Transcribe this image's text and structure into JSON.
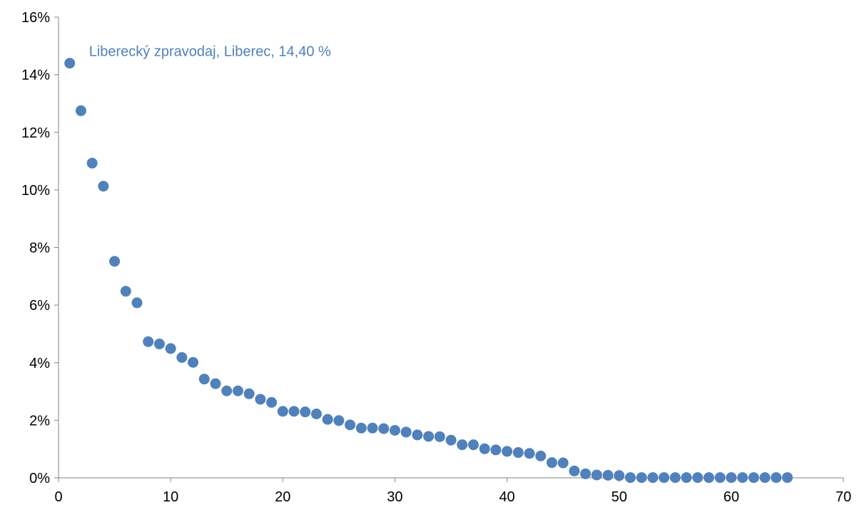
{
  "chart_data": {
    "type": "scatter",
    "title": "",
    "xlabel": "",
    "ylabel": "",
    "xlim": [
      0,
      70
    ],
    "ylim": [
      0,
      0.16
    ],
    "x_ticks": [
      "0",
      "10",
      "20",
      "30",
      "40",
      "50",
      "60",
      "70"
    ],
    "y_ticks": [
      "0%",
      "2%",
      "4%",
      "6%",
      "8%",
      "10%",
      "12%",
      "14%",
      "16%"
    ],
    "grid": false,
    "legend": "none",
    "marker_color": "#4F81BD",
    "annotation": {
      "text": "Liberecký zpravodaj, Liberec, 14,40 %",
      "color": "#4F81BD",
      "x": 1,
      "y": 0.144
    },
    "series": [
      {
        "x": [
          1,
          2,
          3,
          4,
          5,
          6,
          7,
          8,
          9,
          10,
          11,
          12,
          13,
          14,
          15,
          16,
          17,
          18,
          19,
          20,
          21,
          22,
          23,
          24,
          25,
          26,
          27,
          28,
          29,
          30,
          31,
          32,
          33,
          34,
          35,
          36,
          37,
          38,
          39,
          40,
          41,
          42,
          43,
          44,
          45,
          46,
          47,
          48,
          49,
          50,
          51,
          52,
          53,
          54,
          55,
          56,
          57,
          58,
          59,
          60,
          61,
          62,
          63,
          64,
          65
        ],
        "y": [
          0.144,
          0.1275,
          0.1093,
          0.1013,
          0.0752,
          0.0648,
          0.0608,
          0.0473,
          0.0465,
          0.0449,
          0.0418,
          0.0401,
          0.0343,
          0.0327,
          0.0302,
          0.0302,
          0.0292,
          0.0273,
          0.0262,
          0.0231,
          0.0231,
          0.0229,
          0.0222,
          0.0203,
          0.0199,
          0.0184,
          0.0173,
          0.0173,
          0.0171,
          0.0165,
          0.0159,
          0.0149,
          0.0144,
          0.0143,
          0.0131,
          0.0115,
          0.0115,
          0.0101,
          0.0097,
          0.0092,
          0.0088,
          0.0085,
          0.0076,
          0.0053,
          0.0052,
          0.0024,
          0.0014,
          0.001,
          0.0009,
          0.0008,
          0.0001,
          0.0001,
          0.0001,
          0.0001,
          0.0001,
          0.0001,
          0.0001,
          0.0001,
          0.0001,
          0.0001,
          0.0001,
          0.0001,
          0.0001,
          0.0001,
          0.0001
        ]
      }
    ]
  }
}
